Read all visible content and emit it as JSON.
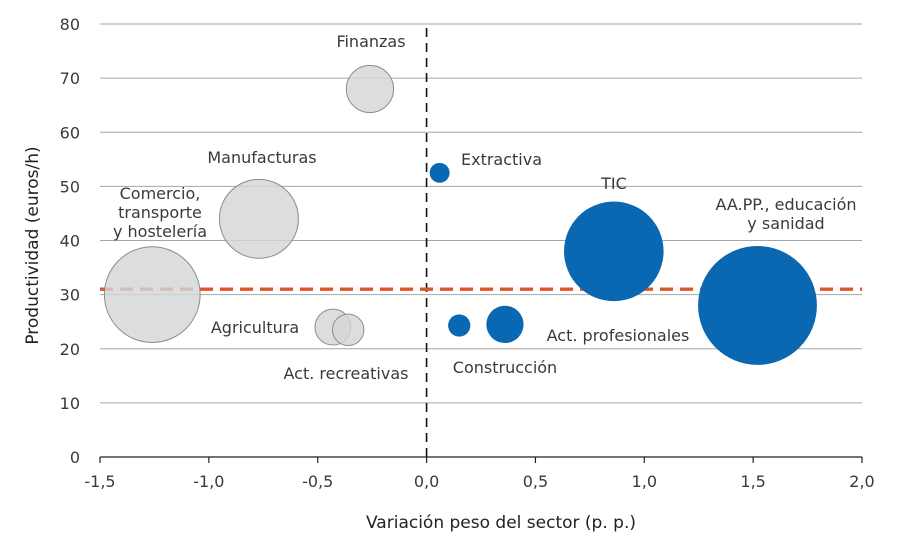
{
  "chart_data": {
    "type": "scatter",
    "title": "",
    "xlabel": "Variación peso del sector (p. p.)",
    "ylabel": "Productividad (euros/h)",
    "xlim": [
      -1.5,
      2.0
    ],
    "ylim": [
      0,
      80
    ],
    "x_ticks": [
      -1.5,
      -1.0,
      -0.5,
      0.0,
      0.5,
      1.0,
      1.5,
      2.0
    ],
    "x_tick_labels": [
      "-1,5",
      "-1,0",
      "-0,5",
      "0,0",
      "0,5",
      "1,0",
      "1,5",
      "2,0"
    ],
    "y_ticks": [
      0,
      10,
      20,
      30,
      40,
      50,
      60,
      70,
      80
    ],
    "y_tick_labels": [
      "0",
      "10",
      "20",
      "30",
      "40",
      "50",
      "60",
      "70",
      "80"
    ],
    "grid": true,
    "reference_lines": {
      "vertical_x": 0.0,
      "horizontal_y": 31.0
    },
    "colors": {
      "decline": "#d3d6d7",
      "decline_stroke": "#8c8c8c",
      "growth": "#0a67b1",
      "reference_h": "#e0542c",
      "reference_v": "#111111"
    },
    "series": [
      {
        "name": "Finanzas",
        "x": -0.26,
        "y": 68,
        "size": 0.45,
        "group": "decline",
        "label_lines": [
          "Finanzas"
        ]
      },
      {
        "name": "Manufacturas",
        "x": -0.77,
        "y": 44,
        "size": 1.26,
        "group": "decline",
        "label_lines": [
          "Manufacturas"
        ]
      },
      {
        "name": "Comercio, transporte y hostelería",
        "x": -1.26,
        "y": 30,
        "size": 1.85,
        "group": "decline",
        "label_lines": [
          "Comercio,",
          "transporte",
          "y hostelería"
        ]
      },
      {
        "name": "Agricultura",
        "x": -0.43,
        "y": 24,
        "size": 0.26,
        "group": "decline",
        "label_lines": [
          "Agricultura"
        ]
      },
      {
        "name": "Act. recreativas",
        "x": -0.36,
        "y": 23.5,
        "size": 0.2,
        "group": "decline",
        "label_lines": [
          "Act. recreativas"
        ]
      },
      {
        "name": "Extractiva",
        "x": 0.06,
        "y": 52.5,
        "size": 0.08,
        "group": "growth",
        "label_lines": [
          "Extractiva"
        ]
      },
      {
        "name": "Construcción",
        "x": 0.15,
        "y": 24.3,
        "size": 0.1,
        "group": "growth",
        "label_lines": [
          "Construcción"
        ]
      },
      {
        "name": "Act. profesionales",
        "x": 0.36,
        "y": 24.5,
        "size": 0.28,
        "group": "growth",
        "label_lines": [
          "Act. profesionales"
        ]
      },
      {
        "name": "TIC",
        "x": 0.86,
        "y": 38,
        "size": 2.0,
        "group": "growth",
        "label_lines": [
          "TIC"
        ]
      },
      {
        "name": "AA.PP., educación y sanidad",
        "x": 1.52,
        "y": 28,
        "size": 2.85,
        "group": "growth",
        "label_lines": [
          "AA.PP., educación",
          "y sanidad"
        ]
      }
    ]
  }
}
